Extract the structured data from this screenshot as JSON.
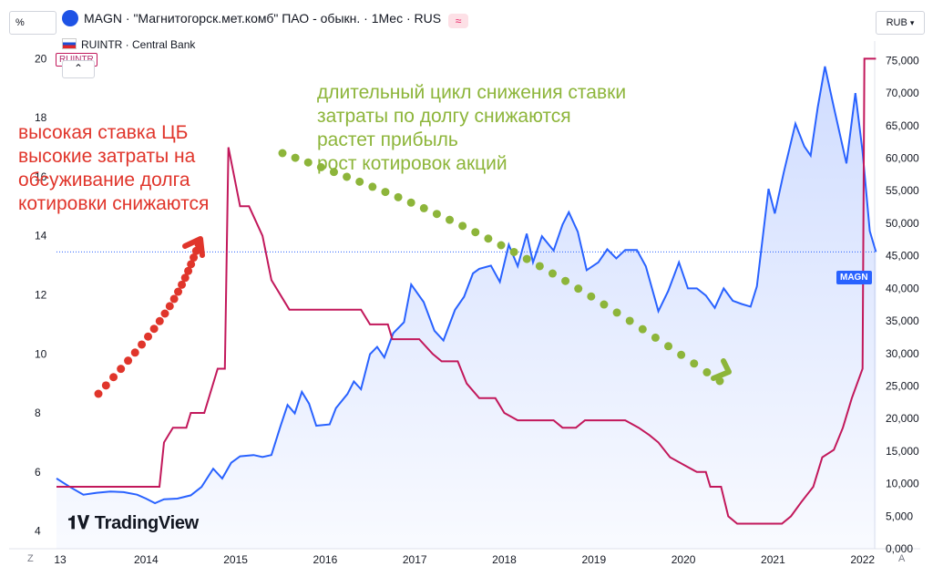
{
  "header": {
    "title": "MAGN · \"Магнитогорск.мет.комб\" ПАО - обыкн. · 1Мес · RUS",
    "icon": "≈",
    "percent_label": "%",
    "currency_label": "RUB"
  },
  "subheader": {
    "label": "RUINTR · Central Bank",
    "badge": "RUINTR"
  },
  "annotations": {
    "red": [
      "высокая ставка ЦБ",
      "высокие затраты на",
      "обсуживание долга",
      "котировки снижаются"
    ],
    "green": [
      "длительный цикл снижения ставки",
      "затраты по долгу снижаются",
      "растет прибыль",
      "рост котировок акций"
    ]
  },
  "magn_label": "MAGN",
  "watermark": "TradingView",
  "corner_left": "Z",
  "corner_right": "A",
  "colors": {
    "price": "#2962ff",
    "rate": "#c2185b",
    "red_ann": "#e0352b",
    "green_ann": "#8db53a"
  },
  "chart_data": {
    "type": "line",
    "title": "MAGN · \"Магнитогорск.мет.комб\" ПАО - обыкн. · 1Мес · RUS",
    "x_ticks": [
      "13",
      "2014",
      "2015",
      "2016",
      "2017",
      "2018",
      "2019",
      "2020",
      "2021",
      "2022"
    ],
    "left_axis": {
      "label": "%",
      "ticks": [
        "4",
        "6",
        "8",
        "10",
        "12",
        "14",
        "16",
        "18",
        "20"
      ],
      "range": [
        3.4,
        20.6
      ]
    },
    "right_axis": {
      "label": "RUB",
      "ticks": [
        "0,000",
        "5,000",
        "10,000",
        "15,000",
        "20,000",
        "25,000",
        "30,000",
        "35,000",
        "40,000",
        "45,000",
        "50,000",
        "55,000",
        "60,000",
        "65,000",
        "70,000",
        "75,000"
      ],
      "range": [
        0,
        78000
      ]
    },
    "series": [
      {
        "name": "MAGN",
        "axis": "right",
        "points": [
          [
            2013.0,
            10800
          ],
          [
            2013.15,
            9500
          ],
          [
            2013.3,
            8300
          ],
          [
            2013.45,
            8600
          ],
          [
            2013.6,
            8800
          ],
          [
            2013.75,
            8700
          ],
          [
            2013.9,
            8300
          ],
          [
            2014.0,
            7700
          ],
          [
            2014.1,
            7000
          ],
          [
            2014.2,
            7600
          ],
          [
            2014.35,
            7700
          ],
          [
            2014.5,
            8200
          ],
          [
            2014.62,
            9500
          ],
          [
            2014.75,
            12300
          ],
          [
            2014.85,
            10800
          ],
          [
            2014.95,
            13200
          ],
          [
            2015.05,
            14200
          ],
          [
            2015.2,
            14400
          ],
          [
            2015.3,
            14100
          ],
          [
            2015.4,
            14400
          ],
          [
            2015.5,
            18800
          ],
          [
            2015.58,
            22100
          ],
          [
            2015.66,
            20800
          ],
          [
            2015.74,
            24100
          ],
          [
            2015.82,
            22300
          ],
          [
            2015.9,
            18900
          ],
          [
            2016.05,
            19100
          ],
          [
            2016.12,
            21600
          ],
          [
            2016.25,
            23800
          ],
          [
            2016.32,
            25700
          ],
          [
            2016.4,
            24500
          ],
          [
            2016.5,
            29900
          ],
          [
            2016.58,
            31000
          ],
          [
            2016.66,
            29400
          ],
          [
            2016.76,
            33100
          ],
          [
            2016.88,
            34800
          ],
          [
            2016.96,
            40600
          ],
          [
            2017.1,
            37900
          ],
          [
            2017.22,
            33500
          ],
          [
            2017.32,
            32000
          ],
          [
            2017.45,
            36700
          ],
          [
            2017.55,
            38700
          ],
          [
            2017.65,
            42300
          ],
          [
            2017.72,
            43000
          ],
          [
            2017.85,
            43500
          ],
          [
            2017.95,
            41000
          ],
          [
            2018.05,
            46700
          ],
          [
            2018.15,
            43400
          ],
          [
            2018.25,
            48400
          ],
          [
            2018.32,
            44000
          ],
          [
            2018.42,
            48000
          ],
          [
            2018.55,
            45800
          ],
          [
            2018.65,
            49800
          ],
          [
            2018.72,
            51700
          ],
          [
            2018.82,
            48700
          ],
          [
            2018.92,
            42800
          ],
          [
            2019.05,
            44000
          ],
          [
            2019.15,
            46000
          ],
          [
            2019.25,
            44600
          ],
          [
            2019.35,
            45900
          ],
          [
            2019.48,
            45900
          ],
          [
            2019.58,
            43400
          ],
          [
            2019.72,
            36500
          ],
          [
            2019.83,
            39600
          ],
          [
            2019.95,
            44000
          ],
          [
            2020.05,
            40000
          ],
          [
            2020.15,
            40000
          ],
          [
            2020.25,
            38900
          ],
          [
            2020.35,
            37000
          ],
          [
            2020.45,
            40000
          ],
          [
            2020.55,
            38100
          ],
          [
            2020.65,
            37600
          ],
          [
            2020.75,
            37200
          ],
          [
            2020.82,
            40300
          ],
          [
            2020.95,
            55300
          ],
          [
            2021.02,
            51500
          ],
          [
            2021.12,
            57800
          ],
          [
            2021.25,
            65300
          ],
          [
            2021.35,
            61800
          ],
          [
            2021.42,
            60400
          ],
          [
            2021.5,
            67800
          ],
          [
            2021.58,
            74100
          ],
          [
            2021.68,
            67800
          ],
          [
            2021.82,
            59200
          ],
          [
            2021.92,
            70000
          ],
          [
            2022.0,
            61000
          ],
          [
            2022.08,
            48800
          ],
          [
            2022.15,
            45600
          ]
        ]
      },
      {
        "name": "RUINTR",
        "axis": "left",
        "points": [
          [
            2013.0,
            5.5
          ],
          [
            2014.15,
            5.5
          ],
          [
            2014.2,
            7.0
          ],
          [
            2014.3,
            7.5
          ],
          [
            2014.45,
            7.5
          ],
          [
            2014.5,
            8.0
          ],
          [
            2014.65,
            8.0
          ],
          [
            2014.8,
            9.5
          ],
          [
            2014.88,
            9.5
          ],
          [
            2014.92,
            17.0
          ],
          [
            2015.05,
            15.0
          ],
          [
            2015.15,
            15.0
          ],
          [
            2015.3,
            14.0
          ],
          [
            2015.4,
            12.5
          ],
          [
            2015.6,
            11.5
          ],
          [
            2016.4,
            11.5
          ],
          [
            2016.5,
            11.0
          ],
          [
            2016.7,
            11.0
          ],
          [
            2016.75,
            10.5
          ],
          [
            2017.05,
            10.5
          ],
          [
            2017.2,
            10.0
          ],
          [
            2017.3,
            9.75
          ],
          [
            2017.48,
            9.75
          ],
          [
            2017.58,
            9.0
          ],
          [
            2017.72,
            8.5
          ],
          [
            2017.9,
            8.5
          ],
          [
            2018.0,
            8.0
          ],
          [
            2018.15,
            7.75
          ],
          [
            2018.55,
            7.75
          ],
          [
            2018.65,
            7.5
          ],
          [
            2018.8,
            7.5
          ],
          [
            2018.9,
            7.75
          ],
          [
            2019.35,
            7.75
          ],
          [
            2019.5,
            7.5
          ],
          [
            2019.62,
            7.25
          ],
          [
            2019.72,
            7.0
          ],
          [
            2019.85,
            6.5
          ],
          [
            2020.0,
            6.25
          ],
          [
            2020.15,
            6.0
          ],
          [
            2020.25,
            6.0
          ],
          [
            2020.3,
            5.5
          ],
          [
            2020.42,
            5.5
          ],
          [
            2020.5,
            4.5
          ],
          [
            2020.6,
            4.25
          ],
          [
            2021.1,
            4.25
          ],
          [
            2021.2,
            4.5
          ],
          [
            2021.32,
            5.0
          ],
          [
            2021.45,
            5.5
          ],
          [
            2021.55,
            6.5
          ],
          [
            2021.68,
            6.75
          ],
          [
            2021.78,
            7.5
          ],
          [
            2021.88,
            8.5
          ],
          [
            2022.0,
            9.5
          ],
          [
            2022.02,
            20.0
          ],
          [
            2022.15,
            20.0
          ]
        ]
      }
    ]
  }
}
